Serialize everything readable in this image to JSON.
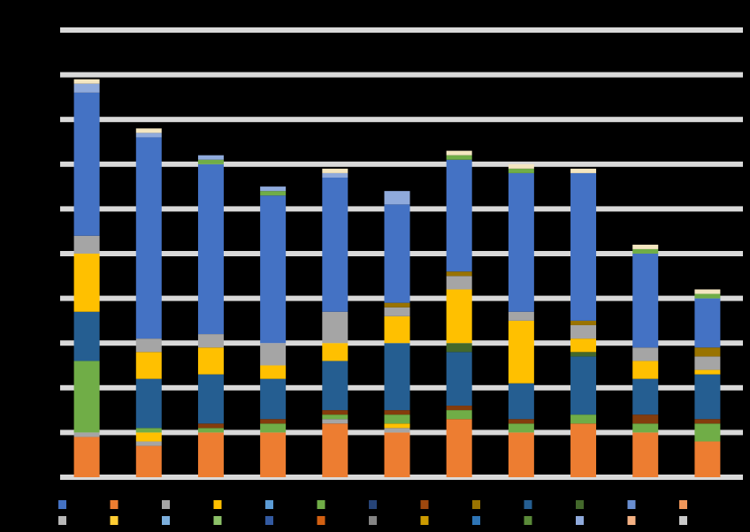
{
  "chart_data": {
    "type": "bar",
    "stacked": true,
    "title": "",
    "xlabel": "",
    "ylabel": "",
    "categories": [
      "",
      "",
      "",
      "",
      "",
      "",
      "",
      "",
      "",
      "",
      ""
    ],
    "ylim": [
      0,
      100
    ],
    "grid": true,
    "legend_placement": "bottom",
    "colors": [
      "#ED7D31",
      "#A5A5A5",
      "#70AD47",
      "#FFC000",
      "#264478",
      "#FFC000",
      "#264478",
      "#A5A5A5",
      "#5B9BD5",
      "#8FAADC",
      "#F4B183"
    ],
    "series": [
      {
        "color": "#ED7D31",
        "values": [
          9,
          7,
          10,
          10,
          12,
          10,
          13,
          10,
          12,
          10,
          8
        ]
      },
      {
        "color": "#A5A5A5",
        "values": [
          1,
          1,
          0,
          0,
          1,
          1,
          0,
          0,
          0,
          0,
          0
        ]
      },
      {
        "color": "#FFC000",
        "values": [
          0,
          2,
          0,
          0,
          0,
          1,
          0,
          0,
          0,
          0,
          0
        ]
      },
      {
        "color": "#70AD47",
        "values": [
          16,
          1,
          1,
          2,
          1,
          2,
          2,
          2,
          2,
          2,
          4
        ]
      },
      {
        "color": "#843C0C",
        "values": [
          0,
          0,
          1,
          1,
          1,
          1,
          1,
          1,
          0,
          2,
          1
        ]
      },
      {
        "color": "#255E91",
        "values": [
          11,
          11,
          11,
          9,
          11,
          15,
          12,
          8,
          13,
          8,
          10
        ]
      },
      {
        "color": "#43682B",
        "values": [
          0,
          0,
          0,
          0,
          0,
          0,
          2,
          0,
          1,
          0,
          0
        ]
      },
      {
        "color": "#FFC000",
        "values": [
          13,
          6,
          6,
          3,
          4,
          6,
          12,
          14,
          3,
          4,
          1
        ]
      },
      {
        "color": "#A5A5A5",
        "values": [
          4,
          3,
          3,
          5,
          7,
          2,
          3,
          2,
          3,
          3,
          3
        ]
      },
      {
        "color": "#997300",
        "values": [
          0,
          0,
          0,
          0,
          0,
          1,
          1,
          0,
          1,
          0,
          2
        ]
      },
      {
        "color": "#4472C4",
        "values": [
          32,
          45,
          38,
          33,
          30,
          22,
          25,
          31,
          33,
          21,
          11
        ]
      },
      {
        "color": "#70AD47",
        "values": [
          0,
          0,
          1,
          1,
          0,
          0,
          1,
          1,
          0,
          1,
          1
        ]
      },
      {
        "color": "#8FAADC",
        "values": [
          2,
          1,
          1,
          1,
          1,
          3,
          0,
          0,
          0,
          0,
          0
        ]
      },
      {
        "color": "#F4E6C0",
        "values": [
          1,
          1,
          0,
          0,
          1,
          0,
          1,
          1,
          1,
          1,
          1
        ]
      }
    ]
  },
  "legend": {
    "rows": [
      [
        {
          "color": "#4472C4",
          "label": ""
        },
        {
          "color": "#ED7D31",
          "label": ""
        },
        {
          "color": "#A5A5A5",
          "label": ""
        },
        {
          "color": "#FFC000",
          "label": ""
        },
        {
          "color": "#5B9BD5",
          "label": ""
        },
        {
          "color": "#70AD47",
          "label": ""
        },
        {
          "color": "#264478",
          "label": ""
        },
        {
          "color": "#9E480E",
          "label": ""
        },
        {
          "color": "#997300",
          "label": ""
        },
        {
          "color": "#255E91",
          "label": ""
        },
        {
          "color": "#43682B",
          "label": ""
        },
        {
          "color": "#698ED0",
          "label": ""
        },
        {
          "color": "#F1975A",
          "label": ""
        }
      ],
      [
        {
          "color": "#B7B7B7",
          "label": ""
        },
        {
          "color": "#FFCD33",
          "label": ""
        },
        {
          "color": "#7CAFDD",
          "label": ""
        },
        {
          "color": "#8CC168",
          "label": ""
        },
        {
          "color": "#335AA1",
          "label": ""
        },
        {
          "color": "#D26012",
          "label": ""
        },
        {
          "color": "#848484",
          "label": ""
        },
        {
          "color": "#CC9A00",
          "label": ""
        },
        {
          "color": "#2E75B6",
          "label": ""
        },
        {
          "color": "#5A8A39",
          "label": ""
        },
        {
          "color": "#8FAADC",
          "label": ""
        },
        {
          "color": "#F4B183",
          "label": ""
        },
        {
          "color": "#C9C9C9",
          "label": ""
        }
      ]
    ]
  }
}
